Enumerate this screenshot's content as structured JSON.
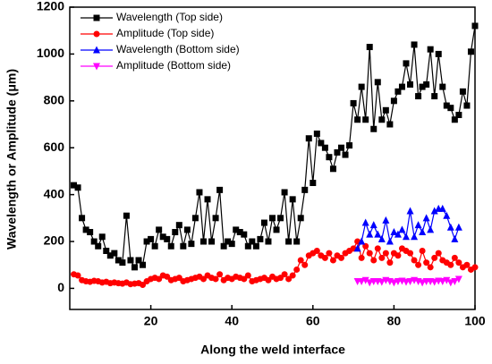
{
  "chart_data": {
    "type": "line",
    "x_label": "Along the weld interface",
    "y_label": "Wavelength or Amplitude (μm)",
    "xlim": [
      0,
      100
    ],
    "xticks": [
      20,
      40,
      60,
      80,
      100
    ],
    "ylim": [
      -90,
      1200
    ],
    "yticks": [
      0,
      200,
      400,
      600,
      800,
      1000,
      1200
    ],
    "legend": "upper left",
    "series": [
      {
        "name": "Wavelength (Top side)",
        "color": "#000000",
        "marker": "square",
        "x": [
          1,
          2,
          3,
          4,
          5,
          6,
          7,
          8,
          9,
          10,
          11,
          12,
          13,
          14,
          15,
          16,
          17,
          18,
          19,
          20,
          21,
          22,
          23,
          24,
          25,
          26,
          27,
          28,
          29,
          30,
          31,
          32,
          33,
          34,
          35,
          36,
          37,
          38,
          39,
          40,
          41,
          42,
          43,
          44,
          45,
          46,
          47,
          48,
          49,
          50,
          51,
          52,
          53,
          54,
          55,
          56,
          57,
          58,
          59,
          60,
          61,
          62,
          63,
          64,
          65,
          66,
          67,
          68,
          69,
          70,
          71,
          72,
          73,
          74,
          75,
          76,
          77,
          78,
          79,
          80,
          81,
          82,
          83,
          84,
          85,
          86,
          87,
          88,
          89,
          90,
          91,
          92,
          93,
          94,
          95,
          96,
          97,
          98,
          99,
          100
        ],
        "values": [
          440,
          430,
          300,
          250,
          240,
          200,
          180,
          220,
          160,
          140,
          150,
          120,
          110,
          310,
          120,
          90,
          120,
          100,
          200,
          210,
          180,
          250,
          220,
          210,
          180,
          240,
          270,
          180,
          250,
          190,
          300,
          410,
          200,
          380,
          200,
          300,
          420,
          180,
          200,
          190,
          250,
          240,
          230,
          180,
          200,
          180,
          210,
          280,
          200,
          300,
          250,
          300,
          410,
          200,
          380,
          200,
          300,
          420,
          640,
          450,
          660,
          620,
          600,
          560,
          510,
          580,
          600,
          570,
          610,
          790,
          720,
          860,
          720,
          1030,
          680,
          880,
          720,
          760,
          700,
          800,
          840,
          860,
          960,
          870,
          1040,
          820,
          860,
          870,
          1020,
          820,
          1000,
          860,
          780,
          770,
          720,
          740,
          840,
          780,
          1010,
          1120
        ]
      },
      {
        "name": "Amplitude (Top side)",
        "color": "#ff0000",
        "marker": "circle",
        "x": [
          1,
          2,
          3,
          4,
          5,
          6,
          7,
          8,
          9,
          10,
          11,
          12,
          13,
          14,
          15,
          16,
          17,
          18,
          19,
          20,
          21,
          22,
          23,
          24,
          25,
          26,
          27,
          28,
          29,
          30,
          31,
          32,
          33,
          34,
          35,
          36,
          37,
          38,
          39,
          40,
          41,
          42,
          43,
          44,
          45,
          46,
          47,
          48,
          49,
          50,
          51,
          52,
          53,
          54,
          55,
          56,
          57,
          58,
          59,
          60,
          61,
          62,
          63,
          64,
          65,
          66,
          67,
          68,
          69,
          70,
          71,
          72,
          73,
          74,
          75,
          76,
          77,
          78,
          79,
          80,
          81,
          82,
          83,
          84,
          85,
          86,
          87,
          88,
          89,
          90,
          91,
          92,
          93,
          94,
          95,
          96,
          97,
          98,
          99,
          100
        ],
        "values": [
          60,
          55,
          35,
          30,
          28,
          32,
          30,
          25,
          28,
          22,
          25,
          22,
          20,
          25,
          18,
          20,
          22,
          15,
          30,
          40,
          45,
          40,
          55,
          50,
          35,
          40,
          45,
          30,
          35,
          40,
          45,
          50,
          40,
          55,
          45,
          40,
          60,
          35,
          45,
          40,
          50,
          45,
          40,
          55,
          30,
          35,
          40,
          45,
          35,
          50,
          40,
          45,
          60,
          40,
          55,
          80,
          120,
          100,
          140,
          150,
          160,
          140,
          130,
          150,
          120,
          140,
          130,
          150,
          160,
          170,
          200,
          130,
          180,
          150,
          120,
          170,
          130,
          150,
          110,
          150,
          140,
          170,
          160,
          150,
          120,
          100,
          160,
          110,
          90,
          130,
          150,
          120,
          110,
          100,
          130,
          110,
          90,
          100,
          80,
          90
        ]
      },
      {
        "name": "Wavelength (Bottom side)",
        "color": "#0000ff",
        "marker": "triangle",
        "x": [
          71,
          72,
          73,
          74,
          75,
          76,
          77,
          78,
          79,
          80,
          81,
          82,
          83,
          84,
          85,
          86,
          87,
          88,
          89,
          90,
          91,
          92,
          93,
          94,
          95,
          96
        ],
        "values": [
          170,
          200,
          280,
          230,
          270,
          230,
          210,
          290,
          200,
          240,
          230,
          250,
          220,
          330,
          220,
          270,
          240,
          300,
          250,
          330,
          340,
          340,
          310,
          260,
          210,
          260
        ]
      },
      {
        "name": "Amplitude (Bottom side)",
        "color": "#ff00ff",
        "marker": "triangle-down",
        "x": [
          71,
          72,
          73,
          74,
          75,
          76,
          77,
          78,
          79,
          80,
          81,
          82,
          83,
          84,
          85,
          86,
          87,
          88,
          89,
          90,
          91,
          92,
          93,
          94,
          95,
          96
        ],
        "values": [
          30,
          30,
          35,
          25,
          30,
          30,
          28,
          35,
          30,
          25,
          30,
          32,
          28,
          30,
          35,
          30,
          25,
          30,
          30,
          28,
          32,
          30,
          35,
          25,
          30,
          40
        ]
      }
    ]
  }
}
